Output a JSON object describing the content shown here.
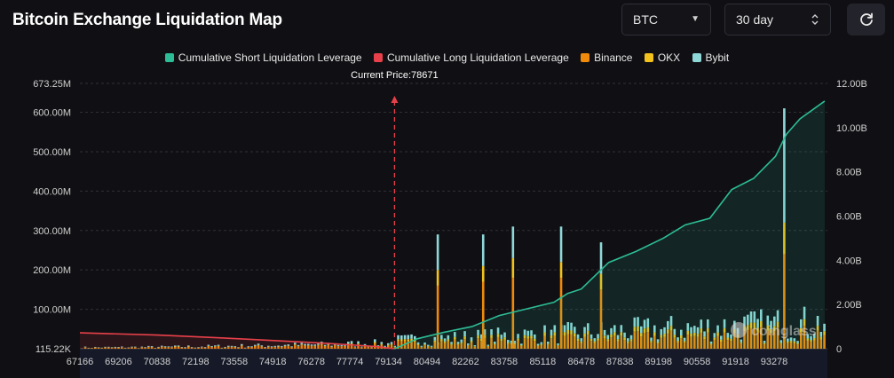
{
  "header": {
    "title": "Bitcoin Exchange Liquidation Map",
    "coin_select": "BTC",
    "range_select": "30 day"
  },
  "colors": {
    "short_line": "#2dbd96",
    "long_line": "#e8404a",
    "binance": "#f08a0a",
    "okx": "#f3c21c",
    "bybit": "#8fd8d8",
    "background": "#101014",
    "grid": "#2e2e36"
  },
  "chart_data": {
    "type": "bar",
    "title": "Bitcoin Exchange Liquidation Map",
    "current_price_label": "Current Price:78671",
    "current_price": 78671,
    "legend": [
      {
        "name": "Cumulative Short Liquidation Leverage",
        "color": "#2dbd96"
      },
      {
        "name": "Cumulative Long Liquidation Leverage",
        "color": "#e8404a"
      },
      {
        "name": "Binance",
        "color": "#f08a0a"
      },
      {
        "name": "OKX",
        "color": "#f3c21c"
      },
      {
        "name": "Bybit",
        "color": "#8fd8d8"
      }
    ],
    "x_range": [
      67166,
      94500
    ],
    "x_tick_labels": [
      "67166",
      "69206",
      "70838",
      "72198",
      "73558",
      "74918",
      "76278",
      "77774",
      "79134",
      "80494",
      "82262",
      "83758",
      "85118",
      "86478",
      "87838",
      "89198",
      "90558",
      "91918",
      "93278"
    ],
    "left_axis": {
      "min_label": "115.22K",
      "ylim": [
        0,
        673.25
      ],
      "tick_values": [
        100,
        200,
        300,
        400,
        500,
        600,
        673.25
      ],
      "tick_labels": [
        "100.00M",
        "200.00M",
        "300.00M",
        "400.00M",
        "500.00M",
        "600.00M",
        "673.25M"
      ]
    },
    "right_axis": {
      "ylim": [
        0,
        12.0
      ],
      "tick_values": [
        0,
        2,
        4,
        6,
        8,
        10,
        12
      ],
      "tick_labels": [
        "0",
        "2.00B",
        "4.00B",
        "6.00B",
        "8.00B",
        "10.00B",
        "12.00B"
      ]
    },
    "stacked_bar_peaks": [
      {
        "x": 80210,
        "binance": 160,
        "okx": 40,
        "bybit": 90
      },
      {
        "x": 81870,
        "binance": 170,
        "okx": 40,
        "bybit": 80
      },
      {
        "x": 82960,
        "binance": 180,
        "okx": 50,
        "bybit": 80
      },
      {
        "x": 84720,
        "binance": 180,
        "okx": 40,
        "bybit": 90
      },
      {
        "x": 86180,
        "binance": 150,
        "okx": 40,
        "bybit": 80
      },
      {
        "x": 92880,
        "binance": 240,
        "okx": 80,
        "bybit": 290
      }
    ],
    "series": [
      {
        "name": "Cumulative Long Liquidation Leverage",
        "axis": "right",
        "x": [
          67166,
          70000,
          73000,
          76000,
          78000,
          78671
        ],
        "values": [
          0.72,
          0.62,
          0.45,
          0.26,
          0.1,
          0.0
        ]
      },
      {
        "name": "Cumulative Short Liquidation Leverage",
        "axis": "right",
        "x": [
          78671,
          79500,
          80500,
          81500,
          82500,
          83500,
          84500,
          85000,
          85500,
          86500,
          87500,
          88500,
          89300,
          90200,
          91000,
          91800,
          92600,
          93000,
          93500,
          94400
        ],
        "values": [
          0.0,
          0.45,
          0.75,
          1.0,
          1.5,
          1.8,
          2.1,
          2.5,
          2.7,
          3.9,
          4.4,
          5.0,
          5.6,
          5.9,
          7.2,
          7.7,
          8.7,
          9.7,
          10.4,
          11.2
        ]
      }
    ]
  }
}
